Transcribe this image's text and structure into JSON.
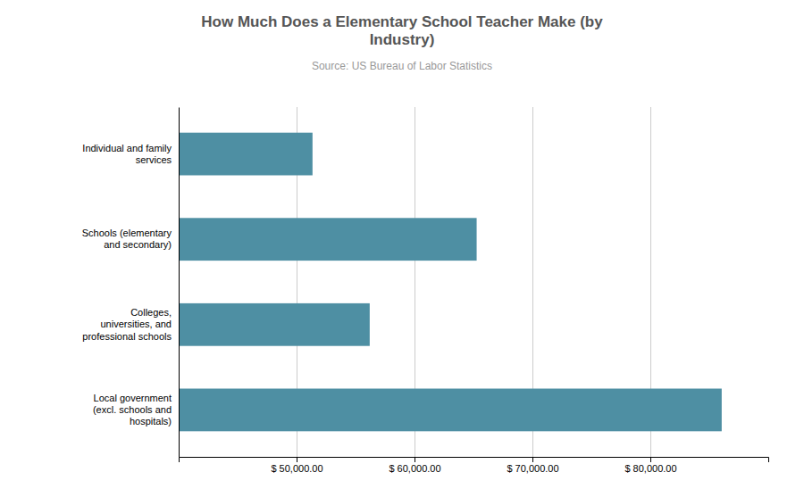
{
  "chart_data": {
    "type": "bar",
    "orientation": "horizontal",
    "title": "How Much Does a Elementary School Teacher Make (by\nIndustry)",
    "subtitle": "Source: US Bureau of Labor Statistics",
    "categories": [
      "Local government\n(excl. schools and\nhospitals)",
      "Colleges,\nuniversities, and\nprofessional schools",
      "Schools (elementary\nand secondary)",
      "Individual and family\nservices"
    ],
    "values": [
      86050,
      56200,
      65270,
      51350
    ],
    "color": "#4e8fa3",
    "xlim": [
      40000,
      90000
    ],
    "xticks": [
      {
        "value": 50000,
        "label": "$ 50,000.00"
      },
      {
        "value": 60000,
        "label": "$ 60,000.00"
      },
      {
        "value": 70000,
        "label": "$ 70,000.00"
      },
      {
        "value": 80000,
        "label": "$ 80,000.00"
      }
    ],
    "grid": true
  }
}
